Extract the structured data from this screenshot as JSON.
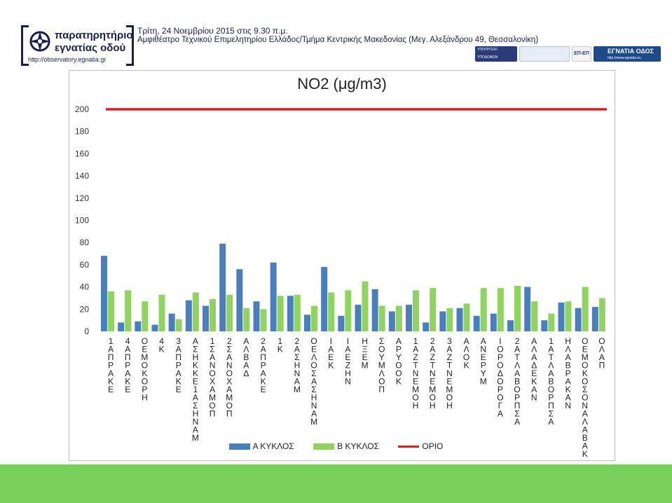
{
  "header": {
    "brand_line1": "παρατηρητήριο",
    "brand_line2": "εγνατίας οδού",
    "brand_url": "http://observatory.egnatia.gr",
    "event_line1": "Τρίτη, 24 Νοεμβρίου 2015 στις 9.30 π.μ.",
    "event_line2": "Αμφιθέατρο Τεχνικού Επιμελητηρίου Ελλάδος/Τμήμα Κεντρικής Μακεδονίας (Μεγ. Αλεξάνδρου 49, Θεσσαλονίκη)",
    "logo_ministry_text": "ΥΠΟΥΡΓΕΙΟ ΥΠΟΔΟΜΩΝ ΜΕΤΑΦΟΡΩΝ & ΔΙΚΤΥΩΝ",
    "logo_epep_text": "ΕΠ-ΕΠ",
    "logo_egnatia_text": "ΕΓΝΑΤΙΑ ΟΔΟΣ",
    "logo_egnatia_url": "http://www.egnatia.eu"
  },
  "colors": {
    "series_a": "#4a7fbf",
    "series_b": "#8ed45f",
    "limit": "#e11b22",
    "footer": "#77d05a",
    "brand": "#1a1f4a"
  },
  "chart_data": {
    "type": "bar",
    "title": "NO2 (μg/m3)",
    "ylim": [
      0,
      200
    ],
    "yticks": [
      0,
      20,
      40,
      60,
      80,
      100,
      120,
      140,
      160,
      180,
      200
    ],
    "grid": false,
    "legend_position": "bottom",
    "categories": [
      "1 ΑΠΡΑΚΕ",
      "4 ΑΠΡΑΚΕ",
      "ΟΕΜΟΚΟΡΗ",
      "4 Κ",
      "3 ΑΠΡΑΚΕ",
      "ΑΣΗΚΚΕ-1 ΑΣΗΝΑΜ",
      "1 ΣΑΝΟΧΑΜΟΠ",
      "2 ΣΑΝΟΧΑΜΟΠ",
      "ΑΛΒΑΔ",
      "2 ΑΠΡΑΚΕ",
      "1 Κ",
      "2 ΑΣΗΝΑΜ",
      "ΟΕΛΟΣ-ΑΣΗΝΑΜ",
      "ΙΑΕΚ",
      "ΙΑΕΖΗΝ",
      "ΗΞΕΜ",
      "ΣΟΥΜΛΟΠ",
      "ΑΡΥΟΟΚ",
      "1 ΑΖΤΝΕΜΟΗ",
      "2 ΑΖΤΝΕΜΟΗ",
      "3 ΑΖΤΝΕΜΟΗ",
      "ΑΛΟΚ",
      "ΑΝΕΡΥΜ",
      "ΙΟΡΟΔΟΡΟΓΑ",
      "2 ΑΤΛΑΒΟΡΠΣΑ",
      "ΑΛΑΔΕΚΑΝ",
      "1 ΑΤΛΑΒΟΡΠΣΑ",
      "ΗΛΑΒΡΑΚΑΝ",
      "ΟΕΜΟΚΟΣΟΝΑΛΑΒΑΚ",
      "ΟΛΑΠ"
    ],
    "category_labels_vertical": [
      "1\nΑ\nΠ\nΡ\nΑ\nΚ\nΕ",
      "4\nΑ\nΠ\nΡ\nΑ\nΚ\nΕ",
      "Ο\nΕ\nΜ\nΟ\nΚ\nΟ\nΡ\nΗ",
      "4\nΚ",
      "3\nΑ\nΠ\nΡ\nΑ\nΚ\nΕ",
      "Α\nΣ\nΗ\nΚ\nΚ\nΕ\n1\nΑ\nΣ\nΗ\nΝ\nΑ\nΜ",
      "1\nΣ\nΑ\nΝ\nΟ\nΧ\nΑ\nΜ\nΟ\nΠ",
      "2\nΣ\nΑ\nΝ\nΟ\nΧ\nΑ\nΜ\nΟ\nΠ",
      "Α\nΛ\nΒ\nΑ\nΔ",
      "2\nΑ\nΠ\nΡ\nΑ\nΚ\nΕ",
      "1\nΚ",
      "2\nΑ\nΣ\nΗ\nΝ\nΑ\nΜ",
      "Ο\nΕ\nΛ\nΟ\nΣ\nΑ\nΣ\nΗ\nΝ\nΑ\nΜ",
      "Ι\nΑ\nΕ\nΚ",
      "Ι\nΑ\nΕ\nΖ\nΗ\nΝ",
      "Η\nΞ\nΕ\nΜ",
      "Σ\nΟ\nΥ\nΜ\nΛ\nΟ\nΠ",
      "Α\nΡ\nΥ\nΟ\nΟ\nΚ",
      "1\nΑ\nΖ\nΤ\nΝ\nΕ\nΜ\nΟ\nΗ",
      "2\nΑ\nΖ\nΤ\nΝ\nΕ\nΜ\nΟ\nΗ",
      "3\nΑ\nΖ\nΤ\nΝ\nΕ\nΜ\nΟ\nΗ",
      "Α\nΛ\nΟ\nΚ",
      "Α\nΝ\nΕ\nΡ\nΥ\nΜ",
      "Ι\nΟ\nΡ\nΟ\nΔ\nΟ\nΡ\nΟ\nΓ\nΑ",
      "2\nΑ\nΤ\nΛ\nΑ\nΒ\nΟ\nΡ\nΠ\nΣ\nΑ",
      "Α\nΛ\nΑ\nΔ\nΕ\nΚ\nΑ\nΝ",
      "1\nΑ\nΤ\nΛ\nΑ\nΒ\nΟ\nΡ\nΠ\nΣ\nΑ",
      "Η\nΛ\nΑ\nΒ\nΡ\nΑ\nΚ\nΑ\nΝ",
      "Ο\nΕ\nΜ\nΟ\nΚ\nΟ\nΣ\nΟ\nΝ\nΑ\nΛ\nΑ\nΒ\nΑ\nΚ",
      "Ο\nΛ\nΑ\nΠ"
    ],
    "series": [
      {
        "name": "Α ΚΥΚΛΟΣ",
        "values": [
          68,
          8,
          9,
          6,
          16,
          28,
          23,
          79,
          56,
          27,
          62,
          32,
          15,
          58,
          14,
          24,
          38,
          18,
          24,
          8,
          18,
          21,
          14,
          16,
          10,
          40,
          10,
          26,
          21,
          22
        ]
      },
      {
        "name": "Β ΚΥΚΛΟΣ",
        "values": [
          36,
          37,
          27,
          33,
          11,
          35,
          29,
          33,
          21,
          20,
          32,
          33,
          23,
          35,
          37,
          45,
          23,
          23,
          37,
          39,
          21,
          25,
          39,
          39,
          41,
          27,
          16,
          27,
          40,
          30
        ]
      }
    ],
    "limit": {
      "name": "ΟΡΙΟ",
      "value": 200
    }
  }
}
